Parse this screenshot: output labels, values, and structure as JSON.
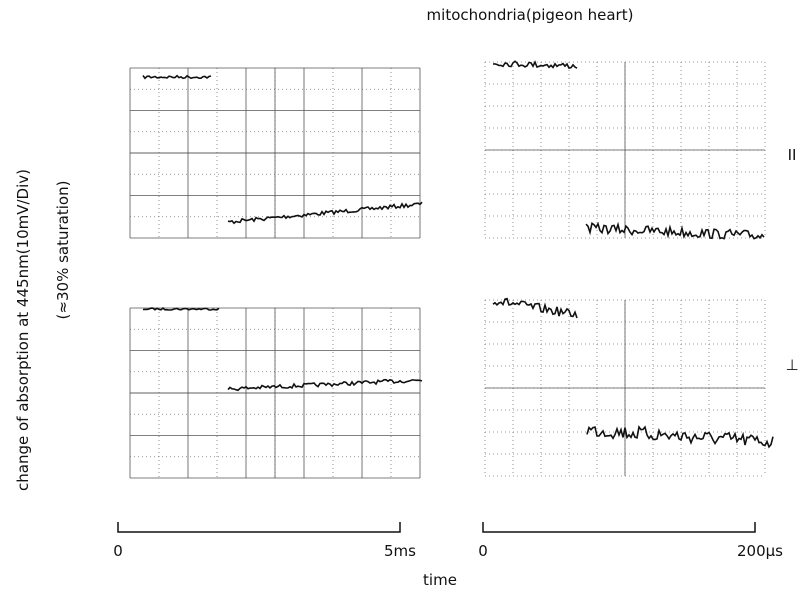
{
  "figure": {
    "title": "mitochondria(pigeon heart)",
    "y_label": "change of absorption at 445nm(10mV/Div)",
    "y_sublabel": "(≈30% saturation)",
    "left_scale": {
      "start": "0",
      "end": "5ms"
    },
    "right_scale": {
      "start": "0",
      "end": "200µs"
    },
    "x_label": "time",
    "top_trace_label": "II",
    "bottom_trace_label": "⊥"
  }
}
